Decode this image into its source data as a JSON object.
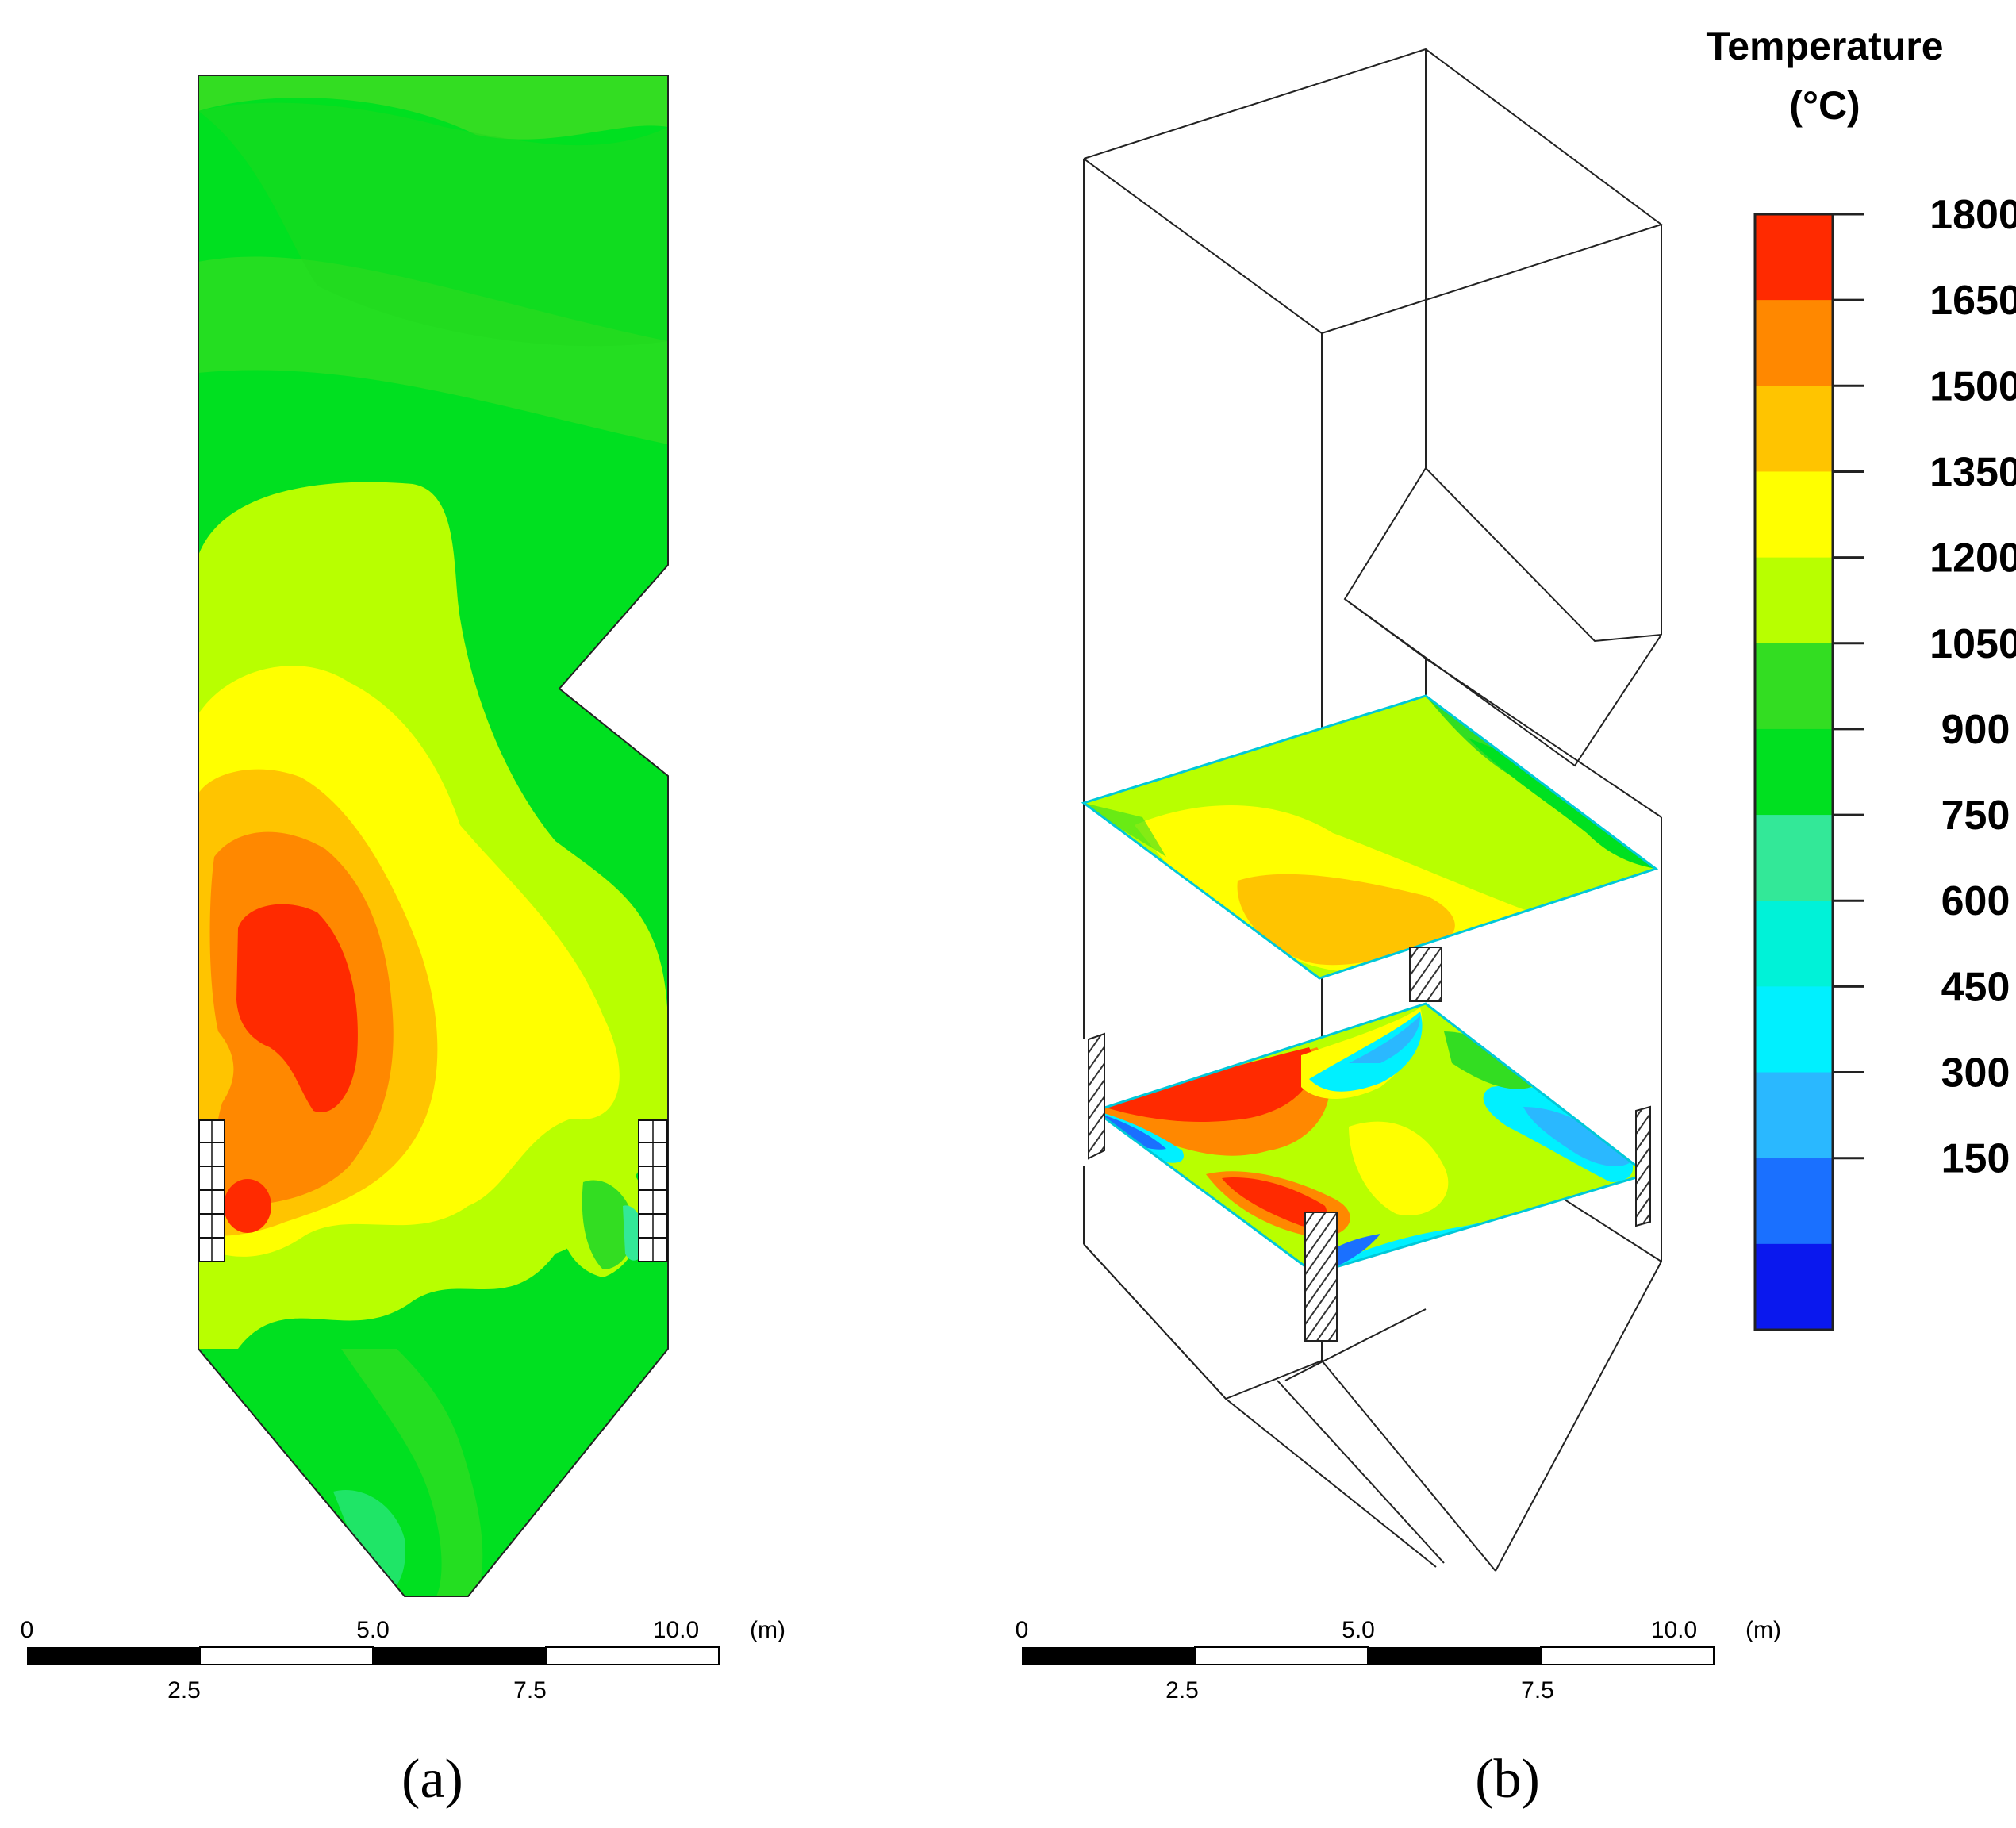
{
  "panels": {
    "a": {
      "label": "(a)"
    },
    "b": {
      "label": "(b)"
    }
  },
  "legend": {
    "title_line1": "Temperature",
    "title_line2": "(°C)",
    "ticks": [
      "1800",
      "1650",
      "1500",
      "1350",
      "1200",
      "1050",
      "900",
      "750",
      "600",
      "450",
      "300",
      "150"
    ],
    "colors": [
      "#ff2a00",
      "#ff8800",
      "#ffc400",
      "#ffff00",
      "#b8ff00",
      "#33dd22",
      "#00e020",
      "#33e898",
      "#00f2d8",
      "#00f0ff",
      "#2ab8ff",
      "#1a70ff",
      "#0a18ee"
    ]
  },
  "scale_bar": {
    "top_labels": [
      "0",
      "5.0",
      "10.0"
    ],
    "bottom_labels": [
      "2.5",
      "7.5"
    ],
    "unit": "(m)"
  }
}
